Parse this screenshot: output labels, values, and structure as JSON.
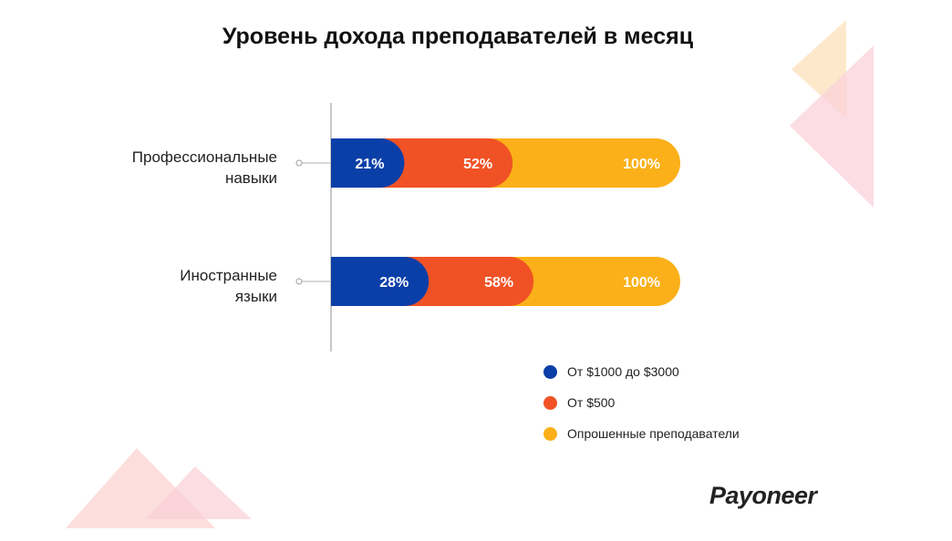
{
  "chart_data": {
    "type": "bar",
    "title": "Уровень дохода преподавателей в месяц",
    "categories": [
      "Профессиональные навыки",
      "Иностранные языки"
    ],
    "category_lines": [
      [
        "Профессиональные",
        "навыки"
      ],
      [
        "Иностранные",
        "языки"
      ]
    ],
    "series": [
      {
        "name": "От $1000 до $3000",
        "values": [
          21,
          28
        ],
        "labels": [
          "21%",
          "28%"
        ],
        "color": "#0b3fa8"
      },
      {
        "name": "От $500",
        "values": [
          52,
          58
        ],
        "labels": [
          "52%",
          "58%"
        ],
        "color": "#f05225"
      },
      {
        "name": "Опрошенные преподаватели",
        "values": [
          100,
          100
        ],
        "labels": [
          "100%",
          "100%"
        ],
        "color": "#fbb019"
      }
    ],
    "ylim": [
      0,
      100
    ],
    "legend_position": "bottom-right",
    "grid": false
  },
  "logo": {
    "text": "Payoneer"
  }
}
